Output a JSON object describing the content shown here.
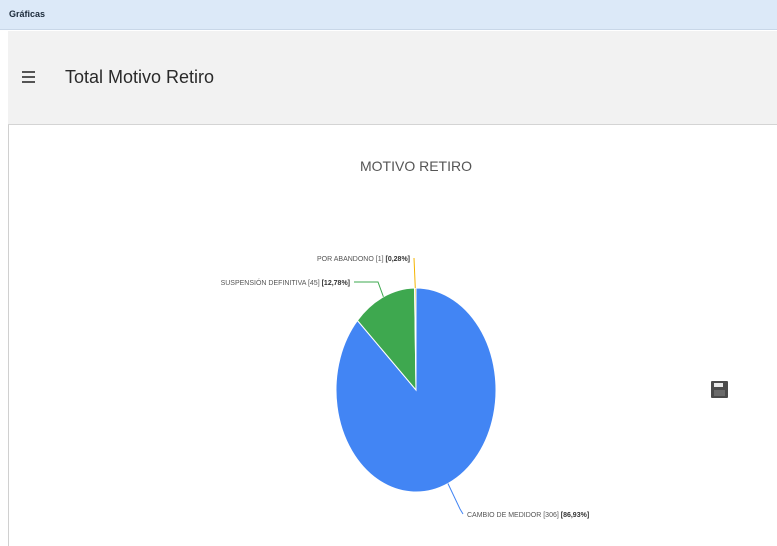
{
  "window": {
    "title": "Gráficas"
  },
  "header": {
    "title": "Total Motivo Retiro"
  },
  "icons": {
    "menu": "hamburger-menu-icon",
    "save": "save-icon"
  },
  "chart_data": {
    "type": "pie",
    "title": "MOTIVO RETIRO",
    "slices": [
      {
        "name": "CAMBIO DE MEDIDOR",
        "count_label": "[306]",
        "value": 306,
        "percent_label": "[86,93%]",
        "color": "#4285f4"
      },
      {
        "name": "SUSPENSIÓN DEFINITIVA",
        "count_label": "[45]",
        "value": 45,
        "percent_label": "[12,78%]",
        "color": "#3ea84f"
      },
      {
        "name": "POR ABANDONO",
        "count_label": "[1]",
        "value": 1,
        "percent_label": "[0,28%]",
        "color": "#f4b400"
      }
    ]
  }
}
